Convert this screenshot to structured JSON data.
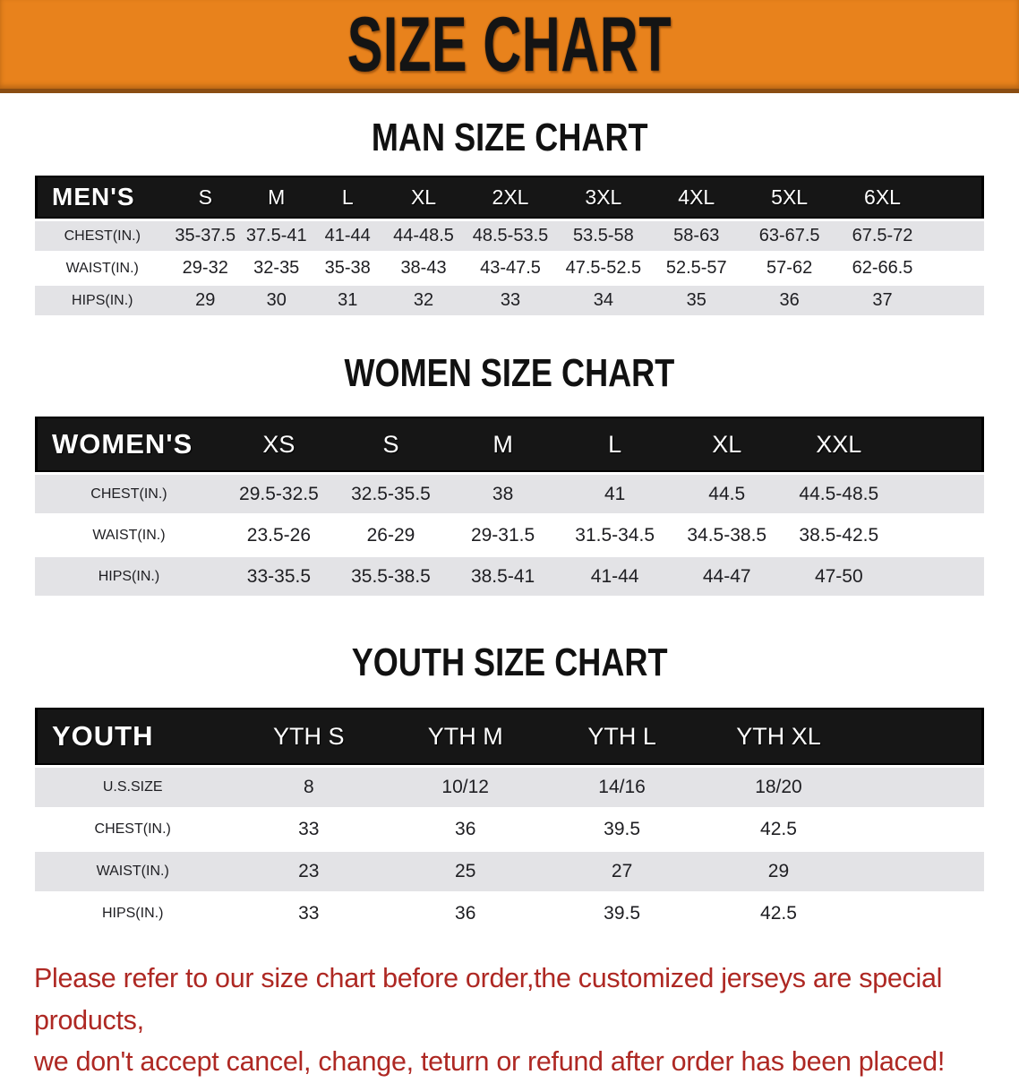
{
  "banner": {
    "title": "SIZE CHART",
    "background": "#E8821C",
    "text_color": "#141414"
  },
  "sections": [
    {
      "heading": "MAN SIZE CHART",
      "table": {
        "header_label": "MEN'S",
        "columns": [
          "S",
          "M",
          "L",
          "XL",
          "2XL",
          "3XL",
          "4XL",
          "5XL",
          "6XL"
        ],
        "rows": [
          {
            "label": "CHEST(IN.)",
            "values": [
              "35-37.5",
              "37.5-41",
              "41-44",
              "44-48.5",
              "48.5-53.5",
              "53.5-58",
              "58-63",
              "63-67.5",
              "67.5-72"
            ]
          },
          {
            "label": "WAIST(IN.)",
            "values": [
              "29-32",
              "32-35",
              "35-38",
              "38-43",
              "43-47.5",
              "47.5-52.5",
              "52.5-57",
              "57-62",
              "62-66.5"
            ]
          },
          {
            "label": "HIPS(IN.)",
            "values": [
              "29",
              "30",
              "31",
              "32",
              "33",
              "34",
              "35",
              "36",
              "37"
            ]
          }
        ]
      }
    },
    {
      "heading": "WOMEN SIZE CHART",
      "table": {
        "header_label": "WOMEN'S",
        "columns": [
          "XS",
          "S",
          "M",
          "L",
          "XL",
          "XXL"
        ],
        "rows": [
          {
            "label": "CHEST(IN.)",
            "values": [
              "29.5-32.5",
              "32.5-35.5",
              "38",
              "41",
              "44.5",
              "44.5-48.5"
            ]
          },
          {
            "label": "WAIST(IN.)",
            "values": [
              "23.5-26",
              "26-29",
              "29-31.5",
              "31.5-34.5",
              "34.5-38.5",
              "38.5-42.5"
            ]
          },
          {
            "label": "HIPS(IN.)",
            "values": [
              "33-35.5",
              "35.5-38.5",
              "38.5-41",
              "41-44",
              "44-47",
              "47-50"
            ]
          }
        ]
      }
    },
    {
      "heading": "YOUTH SIZE CHART",
      "table": {
        "header_label": "YOUTH",
        "columns": [
          "YTH S",
          "YTH M",
          "YTH L",
          "YTH XL"
        ],
        "rows": [
          {
            "label": "U.S.SIZE",
            "values": [
              "8",
              "10/12",
              "14/16",
              "18/20"
            ]
          },
          {
            "label": "CHEST(IN.)",
            "values": [
              "33",
              "36",
              "39.5",
              "42.5"
            ]
          },
          {
            "label": "WAIST(IN.)",
            "values": [
              "23",
              "25",
              "27",
              "29"
            ]
          },
          {
            "label": "HIPS(IN.)",
            "values": [
              "33",
              "36",
              "39.5",
              "42.5"
            ]
          }
        ]
      }
    }
  ],
  "footer": {
    "line1": "Please refer to our size chart before order,the customized jerseys are special products,",
    "line2": "we don't accept cancel, change, teturn or refund after order has been placed!",
    "color": "#AE2823"
  },
  "colors": {
    "banner_orange": "#E8821C",
    "banner_border": "#8a4d12",
    "header_bar_black": "#161616",
    "row_stripe_gray": "#E3E3E6",
    "row_white": "#FFFFFF",
    "footer_red": "#AE2823"
  }
}
